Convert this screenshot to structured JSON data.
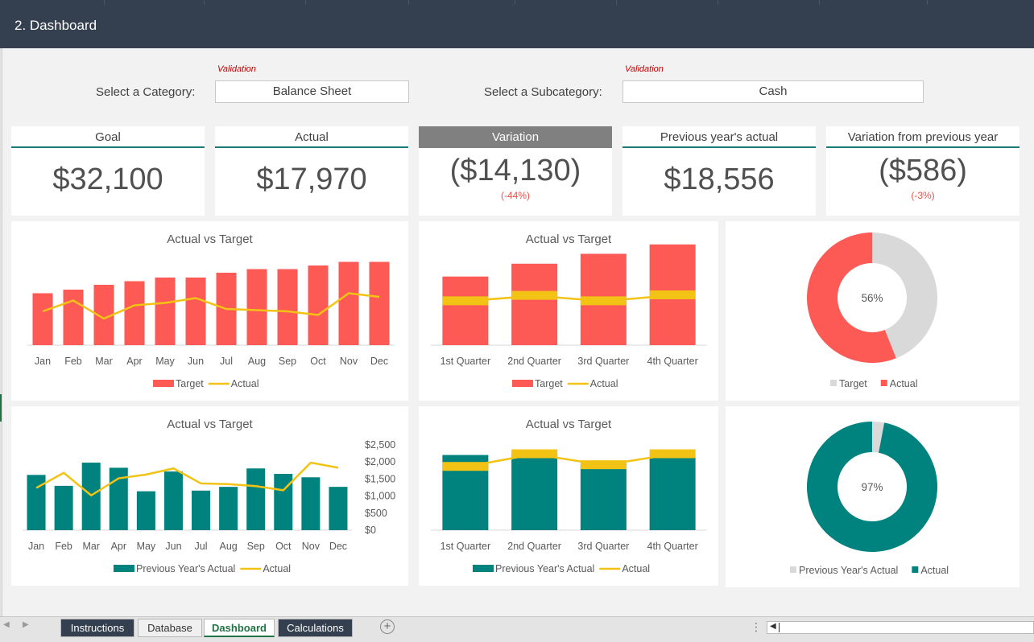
{
  "header": {
    "title": "2. Dashboard"
  },
  "selectors": {
    "validation_note": "Validation",
    "category_label": "Select a Category:",
    "category_value": "Balance Sheet",
    "subcategory_label": "Select a Subcategory:",
    "subcategory_value": "Cash"
  },
  "kpis": [
    {
      "label": "Goal",
      "value": "$32,100",
      "pct": ""
    },
    {
      "label": "Actual",
      "value": "$17,970",
      "pct": ""
    },
    {
      "label": "Variation",
      "value": "($14,130)",
      "pct": "(-44%)"
    },
    {
      "label": "Previous year's actual",
      "value": "$18,556",
      "pct": ""
    },
    {
      "label": "Variation from previous year",
      "value": "($586)",
      "pct": "(-3%)"
    }
  ],
  "colors": {
    "red": "#fd5a55",
    "yellow": "#f2c314",
    "teal": "#00827f",
    "grey": "#d9d9d9",
    "header": "#343f4f"
  },
  "chart_data": [
    {
      "type": "bar",
      "title": "Actual vs Target",
      "categories": [
        "Jan",
        "Feb",
        "Mar",
        "Apr",
        "May",
        "Jun",
        "Jul",
        "Aug",
        "Sep",
        "Oct",
        "Nov",
        "Dec"
      ],
      "series": [
        {
          "name": "Target",
          "kind": "bar",
          "values": [
            2150,
            2300,
            2500,
            2650,
            2800,
            2800,
            3000,
            3150,
            3150,
            3300,
            3450,
            3450
          ]
        },
        {
          "name": "Actual",
          "kind": "line",
          "values": [
            1400,
            1850,
            1100,
            1650,
            1750,
            1950,
            1500,
            1450,
            1400,
            1250,
            2150,
            2000
          ]
        }
      ],
      "ylim": [
        0,
        4500
      ],
      "legend": "bottom"
    },
    {
      "type": "bar",
      "title": "Actual vs Target",
      "categories": [
        "1st Quarter",
        "2nd Quarter",
        "3rd Quarter",
        "4th Quarter"
      ],
      "series": [
        {
          "name": "Target",
          "kind": "stacked-bar",
          "values": [
            6950,
            8250,
            9250,
            10200
          ]
        },
        {
          "name": "Actual",
          "kind": "line",
          "values": [
            4450,
            5000,
            4450,
            5050
          ]
        }
      ],
      "ylim": [
        0,
        11000
      ],
      "legend": "bottom"
    },
    {
      "type": "pie",
      "subtype": "donut",
      "center_label": "56%",
      "series": [
        {
          "name": "Target",
          "values": [
            44
          ]
        },
        {
          "name": "Actual",
          "values": [
            56
          ]
        }
      ],
      "legend": "bottom"
    },
    {
      "type": "bar",
      "title": "Actual vs Target",
      "categories": [
        "Jan",
        "Feb",
        "Mar",
        "Apr",
        "May",
        "Jun",
        "Jul",
        "Aug",
        "Sep",
        "Oct",
        "Nov",
        "Dec"
      ],
      "series": [
        {
          "name": "Previous Year's Actual",
          "kind": "bar",
          "values": [
            1620,
            1300,
            1980,
            1830,
            1140,
            1720,
            1160,
            1270,
            1810,
            1650,
            1550,
            1270
          ]
        },
        {
          "name": "Actual",
          "kind": "line",
          "values": [
            1240,
            1680,
            1020,
            1520,
            1630,
            1810,
            1370,
            1350,
            1290,
            1170,
            1980,
            1830
          ]
        }
      ],
      "yticks": [
        "$0",
        "$500",
        "$1,000",
        "$1,500",
        "$2,000",
        "$2,500"
      ],
      "ylim": [
        0,
        2500
      ],
      "legend": "bottom"
    },
    {
      "type": "bar",
      "title": "Actual vs Target",
      "categories": [
        "1st Quarter",
        "2nd Quarter",
        "3rd Quarter",
        "4th Quarter"
      ],
      "series": [
        {
          "name": "Previous Year's Actual",
          "kind": "stacked-bar",
          "values": [
            4450,
            4500,
            3900,
            4350
          ]
        },
        {
          "name": "Actual",
          "kind": "line",
          "values": [
            3750,
            4500,
            3850,
            4500
          ]
        }
      ],
      "ylim": [
        0,
        5000
      ],
      "legend": "bottom"
    },
    {
      "type": "pie",
      "subtype": "donut",
      "center_label": "97%",
      "series": [
        {
          "name": "Previous Year's Actual",
          "values": [
            3
          ]
        },
        {
          "name": "Actual",
          "values": [
            97
          ]
        }
      ],
      "legend": "bottom"
    }
  ],
  "tabs": [
    {
      "label": "Instructions"
    },
    {
      "label": "Database"
    },
    {
      "label": "Dashboard"
    },
    {
      "label": "Calculations"
    }
  ]
}
